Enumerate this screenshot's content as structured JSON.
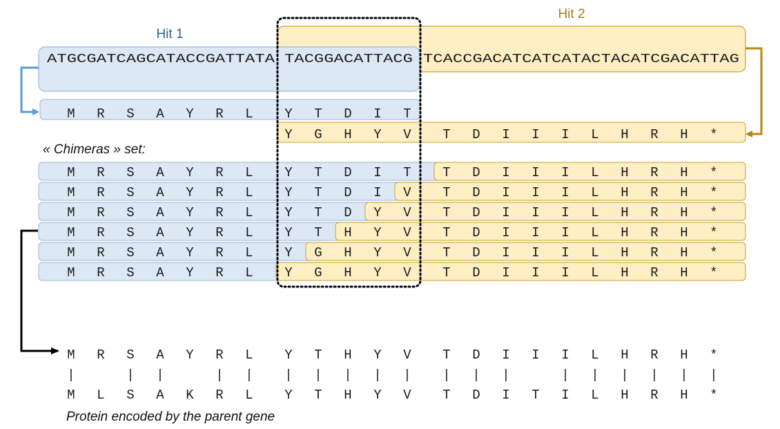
{
  "colors": {
    "hit1_fill": "#dde8f5",
    "hit1_stroke": "#9ab6d6",
    "hit1_label": "#2f5f8a",
    "hit1_arrow": "#5b9bd5",
    "hit2_fill": "#fdefc3",
    "hit2_stroke": "#c9a227",
    "hit2_label": "#a07d1c",
    "hit2_arrow": "#b8860b",
    "chimera_arrow": "#000000",
    "overlap_box": "#000000"
  },
  "hit1": {
    "label": "Hit 1"
  },
  "hit2": {
    "label": "Hit 2"
  },
  "dna": {
    "hit1_only": "ATGCGATCAGCATACCGATTATA",
    "overlap": "TACGGACATTACG",
    "hit2_only": "TCACCGACATCATCATACTACATCGACATTAG"
  },
  "translation_hit1": [
    "M",
    "R",
    "S",
    "A",
    "Y",
    "R",
    "L",
    "Y",
    "T",
    "D",
    "I",
    "T"
  ],
  "translation_hit2": [
    "Y",
    "G",
    "H",
    "Y",
    "V",
    "T",
    "D",
    "I",
    "I",
    "I",
    "L",
    "H",
    "R",
    "H",
    "*"
  ],
  "chimeras_label": "« Chimeras » set:",
  "chimeras": [
    {
      "residues": [
        "M",
        "R",
        "S",
        "A",
        "Y",
        "R",
        "L",
        "Y",
        "T",
        "D",
        "I",
        "T",
        "T",
        "D",
        "I",
        "I",
        "I",
        "L",
        "H",
        "R",
        "H",
        "*"
      ],
      "split": 12
    },
    {
      "residues": [
        "M",
        "R",
        "S",
        "A",
        "Y",
        "R",
        "L",
        "Y",
        "T",
        "D",
        "I",
        "V",
        "T",
        "D",
        "I",
        "I",
        "I",
        "L",
        "H",
        "R",
        "H",
        "*"
      ],
      "split": 11
    },
    {
      "residues": [
        "M",
        "R",
        "S",
        "A",
        "Y",
        "R",
        "L",
        "Y",
        "T",
        "D",
        "Y",
        "V",
        "T",
        "D",
        "I",
        "I",
        "I",
        "L",
        "H",
        "R",
        "H",
        "*"
      ],
      "split": 10
    },
    {
      "residues": [
        "M",
        "R",
        "S",
        "A",
        "Y",
        "R",
        "L",
        "Y",
        "T",
        "H",
        "Y",
        "V",
        "T",
        "D",
        "I",
        "I",
        "I",
        "L",
        "H",
        "R",
        "H",
        "*"
      ],
      "split": 9
    },
    {
      "residues": [
        "M",
        "R",
        "S",
        "A",
        "Y",
        "R",
        "L",
        "Y",
        "G",
        "H",
        "Y",
        "V",
        "T",
        "D",
        "I",
        "I",
        "I",
        "L",
        "H",
        "R",
        "H",
        "*"
      ],
      "split": 8
    },
    {
      "residues": [
        "M",
        "R",
        "S",
        "A",
        "Y",
        "R",
        "L",
        "Y",
        "G",
        "H",
        "Y",
        "V",
        "T",
        "D",
        "I",
        "I",
        "I",
        "L",
        "H",
        "R",
        "H",
        "*"
      ],
      "split": 7
    }
  ],
  "alignment": {
    "selected": [
      "M",
      "R",
      "S",
      "A",
      "Y",
      "R",
      "L",
      "Y",
      "T",
      "H",
      "Y",
      "V",
      "T",
      "D",
      "I",
      "I",
      "I",
      "L",
      "H",
      "R",
      "H",
      "*"
    ],
    "match_marks": [
      "|",
      "",
      "|",
      "|",
      "",
      "|",
      "|",
      "|",
      "|",
      "|",
      "|",
      "|",
      "|",
      "|",
      "|",
      "",
      "|",
      "|",
      "|",
      "|",
      "|",
      "|"
    ],
    "parent": [
      "M",
      "L",
      "S",
      "A",
      "K",
      "R",
      "L",
      "Y",
      "T",
      "H",
      "Y",
      "V",
      "T",
      "D",
      "I",
      "T",
      "I",
      "L",
      "H",
      "R",
      "H",
      "*"
    ]
  },
  "parent_caption": "Protein encoded by the parent gene"
}
